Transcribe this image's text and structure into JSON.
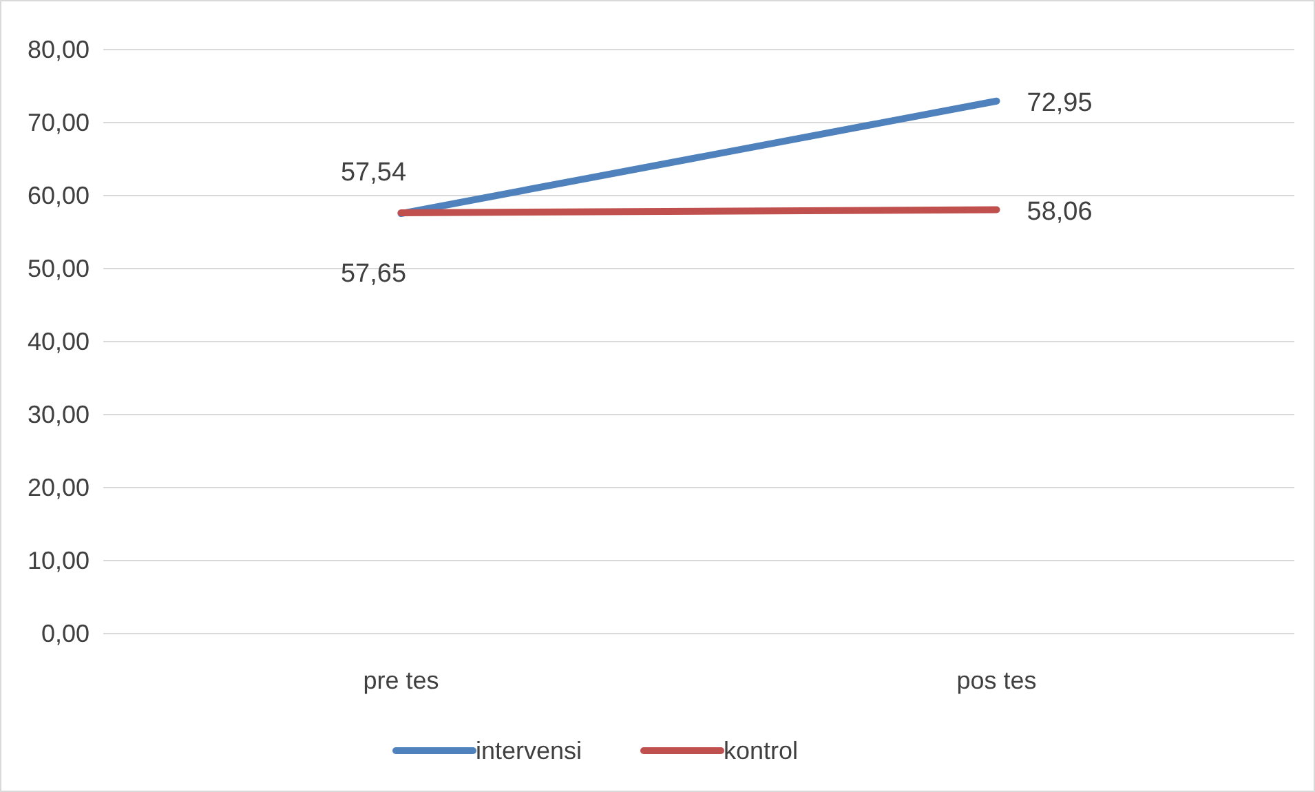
{
  "chart_data": {
    "type": "line",
    "categories": [
      "pre tes",
      "pos tes"
    ],
    "series": [
      {
        "name": "intervensi",
        "color": "#4f81bd",
        "values": [
          57.54,
          72.95
        ],
        "value_labels": [
          "57,54",
          "72,95"
        ]
      },
      {
        "name": "kontrol",
        "color": "#c0504d",
        "values": [
          57.65,
          58.06
        ],
        "value_labels": [
          "57,65",
          "58,06"
        ]
      }
    ],
    "ylim": [
      0,
      80
    ],
    "yticks": [
      {
        "value": 0,
        "label": "0,00"
      },
      {
        "value": 10,
        "label": "10,00"
      },
      {
        "value": 20,
        "label": "20,00"
      },
      {
        "value": 30,
        "label": "30,00"
      },
      {
        "value": 40,
        "label": "40,00"
      },
      {
        "value": 50,
        "label": "50,00"
      },
      {
        "value": 60,
        "label": "60,00"
      },
      {
        "value": 70,
        "label": "70,00"
      },
      {
        "value": 80,
        "label": "80,00"
      }
    ],
    "grid": "y",
    "legend": "bottom",
    "marker": "none",
    "line_style": "solid"
  }
}
